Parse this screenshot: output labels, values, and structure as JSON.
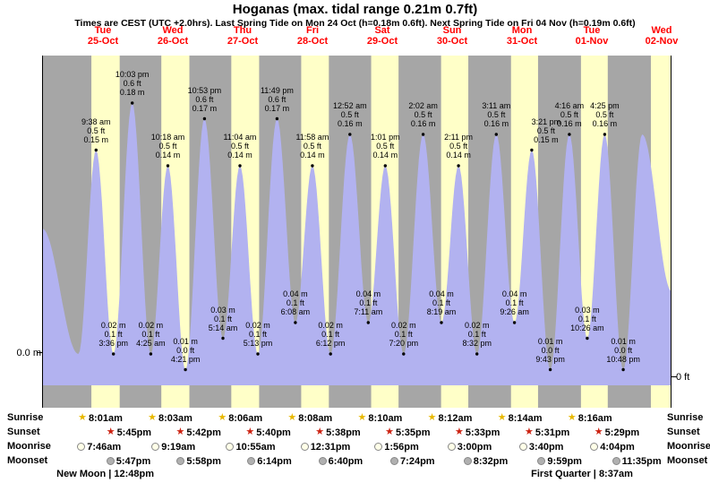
{
  "title": "Hoganas (max. tidal range 0.21m 0.7ft)",
  "subtitle": "Times are CEST (UTC +2.0hrs). Last Spring Tide on Mon 24 Oct (h=0.18m 0.6ft). Next Spring Tide on Fri 04 Nov (h=0.19m 0.6ft)",
  "axis_labels": {
    "left": "0.0 m",
    "right": "0 ft"
  },
  "colors": {
    "night_band": "#a6a6a6",
    "day_band": "#ffffc8",
    "tide_fill": "#b2b2f0",
    "day_label": "#ff0000",
    "sunrise_star": "#e8b800",
    "sunset_star": "#cc2211",
    "moonrise_disc": "#ffffe8",
    "moonset_disc": "#b0b0b0"
  },
  "days": [
    {
      "name": "Tue",
      "date": "25-Oct"
    },
    {
      "name": "Wed",
      "date": "26-Oct"
    },
    {
      "name": "Thu",
      "date": "27-Oct"
    },
    {
      "name": "Fri",
      "date": "28-Oct"
    },
    {
      "name": "Sat",
      "date": "29-Oct"
    },
    {
      "name": "Sun",
      "date": "30-Oct"
    },
    {
      "name": "Mon",
      "date": "31-Oct"
    },
    {
      "name": "Tue",
      "date": "01-Nov"
    },
    {
      "name": "Wed",
      "date": "02-Nov"
    }
  ],
  "chart_data": {
    "type": "area",
    "title": "Hoganas tide height curve",
    "x_unit": "hours from Tue 25-Oct 00:00",
    "y_unit": "meters",
    "ylim": [
      0,
      0.225
    ],
    "tide_events": [
      {
        "type": "high",
        "t": 9.63,
        "height_m": 0.15,
        "label_lines": [
          "9:38 am",
          "0.5 ft",
          "0.15 m"
        ]
      },
      {
        "type": "low",
        "t": 15.6,
        "height_m": 0.02,
        "label_lines": [
          "0.02 m",
          "0.1 ft",
          "3:36 pm"
        ]
      },
      {
        "type": "high",
        "t": 22.05,
        "height_m": 0.18,
        "label_lines": [
          "10:03 pm",
          "0.6 ft",
          "0.18 m"
        ]
      },
      {
        "type": "low",
        "t": 28.42,
        "height_m": 0.02,
        "label_lines": [
          "0.02 m",
          "0.1 ft",
          "4:25 am"
        ]
      },
      {
        "type": "high",
        "t": 34.3,
        "height_m": 0.14,
        "label_lines": [
          "10:18 am",
          "0.5 ft",
          "0.14 m"
        ]
      },
      {
        "type": "low",
        "t": 40.35,
        "height_m": 0.01,
        "label_lines": [
          "0.01 m",
          "0.0 ft",
          "4:21 pm"
        ]
      },
      {
        "type": "high",
        "t": 46.88,
        "height_m": 0.17,
        "label_lines": [
          "10:53 pm",
          "0.6 ft",
          "0.17 m"
        ]
      },
      {
        "type": "low",
        "t": 53.23,
        "height_m": 0.03,
        "label_lines": [
          "0.03 m",
          "0.1 ft",
          "5:14 am"
        ]
      },
      {
        "type": "high",
        "t": 59.07,
        "height_m": 0.14,
        "label_lines": [
          "11:04 am",
          "0.5 ft",
          "0.14 m"
        ]
      },
      {
        "type": "low",
        "t": 65.22,
        "height_m": 0.02,
        "label_lines": [
          "0.02 m",
          "0.1 ft",
          "5:13 pm"
        ]
      },
      {
        "type": "high",
        "t": 71.82,
        "height_m": 0.17,
        "label_lines": [
          "11:49 pm",
          "0.6 ft",
          "0.17 m"
        ]
      },
      {
        "type": "low",
        "t": 78.13,
        "height_m": 0.04,
        "label_lines": [
          "0.04 m",
          "0.1 ft",
          "6:08 am"
        ]
      },
      {
        "type": "high",
        "t": 83.97,
        "height_m": 0.14,
        "label_lines": [
          "11:58 am",
          "0.5 ft",
          "0.14 m"
        ]
      },
      {
        "type": "low",
        "t": 90.2,
        "height_m": 0.02,
        "label_lines": [
          "0.02 m",
          "0.1 ft",
          "6:12 pm"
        ]
      },
      {
        "type": "high",
        "t": 96.87,
        "height_m": 0.16,
        "label_lines": [
          "12:52 am",
          "0.5 ft",
          "0.16 m"
        ]
      },
      {
        "type": "low",
        "t": 103.18,
        "height_m": 0.04,
        "label_lines": [
          "0.04 m",
          "0.1 ft",
          "7:11 am"
        ]
      },
      {
        "type": "high",
        "t": 109.02,
        "height_m": 0.14,
        "label_lines": [
          "1:01 pm",
          "0.5 ft",
          "0.14 m"
        ]
      },
      {
        "type": "low",
        "t": 115.33,
        "height_m": 0.02,
        "label_lines": [
          "0.02 m",
          "0.1 ft",
          "7:20 pm"
        ]
      },
      {
        "type": "high",
        "t": 122.03,
        "height_m": 0.16,
        "label_lines": [
          "2:02 am",
          "0.5 ft",
          "0.16 m"
        ]
      },
      {
        "type": "low",
        "t": 128.32,
        "height_m": 0.04,
        "label_lines": [
          "0.04 m",
          "0.1 ft",
          "8:19 am"
        ]
      },
      {
        "type": "high",
        "t": 134.18,
        "height_m": 0.14,
        "label_lines": [
          "2:11 pm",
          "0.5 ft",
          "0.14 m"
        ]
      },
      {
        "type": "low",
        "t": 140.53,
        "height_m": 0.02,
        "label_lines": [
          "0.02 m",
          "0.1 ft",
          "8:32 pm"
        ]
      },
      {
        "type": "high",
        "t": 147.18,
        "height_m": 0.16,
        "label_lines": [
          "3:11 am",
          "0.5 ft",
          "0.16 m"
        ]
      },
      {
        "type": "low",
        "t": 153.43,
        "height_m": 0.04,
        "label_lines": [
          "0.04 m",
          "0.1 ft",
          "9:26 am"
        ]
      },
      {
        "type": "high",
        "t": 159.35,
        "height_m": 0.15,
        "dx": 16,
        "label_lines": [
          "3:21 pm",
          "0.5 ft",
          "0.15 m"
        ]
      },
      {
        "type": "low",
        "t": 165.72,
        "height_m": 0.01,
        "label_lines": [
          "0.01 m",
          "0.0 ft",
          "9:43 pm"
        ]
      },
      {
        "type": "high",
        "t": 172.27,
        "height_m": 0.16,
        "label_lines": [
          "4:16 am",
          "0.5 ft",
          "0.16 m"
        ]
      },
      {
        "type": "low",
        "t": 178.43,
        "height_m": 0.03,
        "label_lines": [
          "0.03 m",
          "0.1 ft",
          "10:26 am"
        ]
      },
      {
        "type": "high",
        "t": 184.42,
        "height_m": 0.16,
        "label_lines": [
          "4:25 pm",
          "0.5 ft",
          "0.16 m"
        ]
      },
      {
        "type": "low",
        "t": 190.8,
        "height_m": 0.01,
        "label_lines": [
          "0.01 m",
          "0.0 ft",
          "10:48 pm"
        ]
      }
    ],
    "unlabeled_points": [
      {
        "t": -8.9,
        "height_m": 0.1
      },
      {
        "t": 3.55,
        "height_m": 0.02
      },
      {
        "t": 197.3,
        "height_m": 0.16
      },
      {
        "t": 207.4,
        "height_m": 0.06
      }
    ],
    "daylight": [
      {
        "t1": 8.02,
        "t2": 17.75
      },
      {
        "t1": 32.05,
        "t2": 41.7
      },
      {
        "t1": 56.1,
        "t2": 65.67
      },
      {
        "t1": 80.13,
        "t2": 89.63
      },
      {
        "t1": 104.17,
        "t2": 113.58
      },
      {
        "t1": 128.2,
        "t2": 137.55
      },
      {
        "t1": 152.23,
        "t2": 161.52
      },
      {
        "t1": 176.27,
        "t2": 185.48
      },
      {
        "t1": 200.3,
        "t2": 209.45
      }
    ]
  },
  "astro": {
    "row_labels": [
      "Sunrise",
      "Sunset",
      "Moonrise",
      "Moonset"
    ],
    "sunrise": [
      {
        "time": "8:01am",
        "t": 8.02
      },
      {
        "time": "8:03am",
        "t": 32.05
      },
      {
        "time": "8:06am",
        "t": 56.1
      },
      {
        "time": "8:08am",
        "t": 80.13
      },
      {
        "time": "8:10am",
        "t": 104.17
      },
      {
        "time": "8:12am",
        "t": 128.2
      },
      {
        "time": "8:14am",
        "t": 152.23
      },
      {
        "time": "8:16am",
        "t": 176.27
      }
    ],
    "sunset": [
      {
        "time": "5:45pm",
        "t": 17.75
      },
      {
        "time": "5:42pm",
        "t": 41.7
      },
      {
        "time": "5:40pm",
        "t": 65.67
      },
      {
        "time": "5:38pm",
        "t": 89.63
      },
      {
        "time": "5:35pm",
        "t": 113.58
      },
      {
        "time": "5:33pm",
        "t": 137.55
      },
      {
        "time": "5:31pm",
        "t": 161.52
      },
      {
        "time": "5:29pm",
        "t": 185.48
      }
    ],
    "moonrise": [
      {
        "time": "7:46am",
        "t": 7.77
      },
      {
        "time": "9:19am",
        "t": 33.32
      },
      {
        "time": "10:55am",
        "t": 58.92
      },
      {
        "time": "12:31pm",
        "t": 84.52
      },
      {
        "time": "1:56pm",
        "t": 109.93
      },
      {
        "time": "3:00pm",
        "t": 135.0
      },
      {
        "time": "3:40pm",
        "t": 159.67
      },
      {
        "time": "4:04pm",
        "t": 184.07
      }
    ],
    "moonset": [
      {
        "time": "5:47pm",
        "t": 17.78
      },
      {
        "time": "5:58pm",
        "t": 41.97
      },
      {
        "time": "6:14pm",
        "t": 66.23
      },
      {
        "time": "6:40pm",
        "t": 90.67
      },
      {
        "time": "7:24pm",
        "t": 115.4
      },
      {
        "time": "8:32pm",
        "t": 140.53
      },
      {
        "time": "9:59pm",
        "t": 165.98
      },
      {
        "time": "11:35pm",
        "t": 191.58
      }
    ],
    "phases": [
      {
        "label": "New Moon | 12:48pm",
        "t": 12.8
      },
      {
        "label": "First Quarter | 8:37am",
        "t": 176.62
      }
    ]
  }
}
